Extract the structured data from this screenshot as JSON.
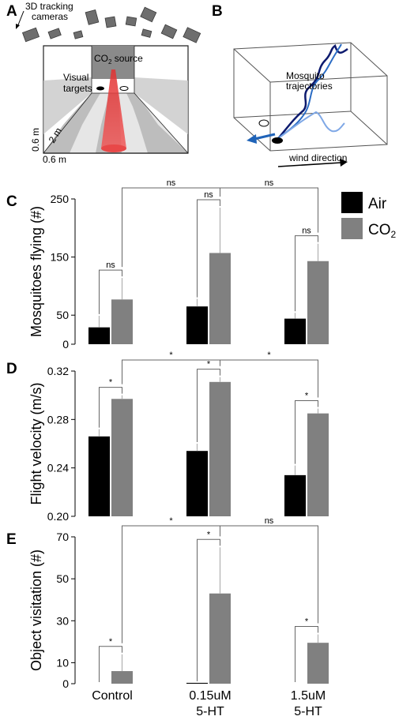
{
  "panels": {
    "A": "A",
    "B": "B",
    "C": "C",
    "D": "D",
    "E": "E"
  },
  "schematic": {
    "cameras_label_1": "3D tracking",
    "cameras_label_2": "cameras",
    "co2_label": "CO",
    "co2_sub": "2",
    "co2_suffix": " source",
    "visual_label_1": "Visual",
    "visual_label_2": "targets",
    "dim_depth": "2 m",
    "dim_height": "0.6 m",
    "dim_width": "0.6 m"
  },
  "trajectories": {
    "label_1": "Mosquito",
    "label_2": "trajectories",
    "wind_label": "wind direction"
  },
  "legend": {
    "items": [
      {
        "label": "Air",
        "color": "#000000"
      },
      {
        "label": "CO",
        "sub": "2",
        "color": "#808080"
      }
    ]
  },
  "colors": {
    "air": "#000000",
    "co2": "#808080"
  },
  "chart_data": [
    {
      "type": "bar",
      "id": "C",
      "categories": [
        "Control",
        "0.15uM 5-HT",
        "1.5uM 5-HT"
      ],
      "ylabel": "Mosquitoes flying (#)",
      "ylim": [
        0,
        250
      ],
      "yticks": [
        0,
        50,
        150,
        250
      ],
      "series": [
        {
          "name": "Air",
          "values": [
            29,
            65,
            44
          ],
          "err": [
            20,
            13,
            10
          ]
        },
        {
          "name": "CO2",
          "values": [
            77,
            157,
            143
          ],
          "err": [
            37,
            78,
            30
          ]
        }
      ],
      "within": [
        "ns",
        "ns",
        "ns"
      ],
      "between": [
        "ns",
        "ns"
      ]
    },
    {
      "type": "bar",
      "id": "D",
      "categories": [
        "Control",
        "0.15uM 5-HT",
        "1.5uM 5-HT"
      ],
      "ylabel": "Flight velocity (m/s)",
      "ylim": [
        0.2,
        0.32
      ],
      "yticks": [
        0.2,
        0.24,
        0.28,
        0.32
      ],
      "series": [
        {
          "name": "Air",
          "values": [
            0.266,
            0.254,
            0.234
          ],
          "err": [
            0.006,
            0.006,
            0.008
          ]
        },
        {
          "name": "CO2",
          "values": [
            0.297,
            0.311,
            0.285
          ],
          "err": [
            0.003,
            0.004,
            0.004
          ]
        }
      ],
      "within": [
        "*",
        "*",
        "*"
      ],
      "between": [
        "*",
        "*"
      ]
    },
    {
      "type": "bar",
      "id": "E",
      "categories": [
        "Control",
        "0.15uM 5-HT",
        "1.5uM 5-HT"
      ],
      "xlabels": [
        [
          "Control"
        ],
        [
          "0.15uM",
          "5-HT"
        ],
        [
          "1.5uM",
          "5-HT"
        ]
      ],
      "ylabel": "Object visitation (#)",
      "ylim": [
        0,
        70
      ],
      "yticks": [
        0,
        10,
        30,
        50,
        70
      ],
      "series": [
        {
          "name": "Air",
          "values": [
            0,
            0.4,
            0
          ],
          "err": [
            0,
            0,
            0
          ]
        },
        {
          "name": "CO2",
          "values": [
            6,
            43,
            19.5
          ],
          "err": [
            8,
            22,
            4
          ]
        }
      ],
      "within": [
        "*",
        "*",
        "*"
      ],
      "between": [
        "*",
        "ns"
      ]
    }
  ]
}
